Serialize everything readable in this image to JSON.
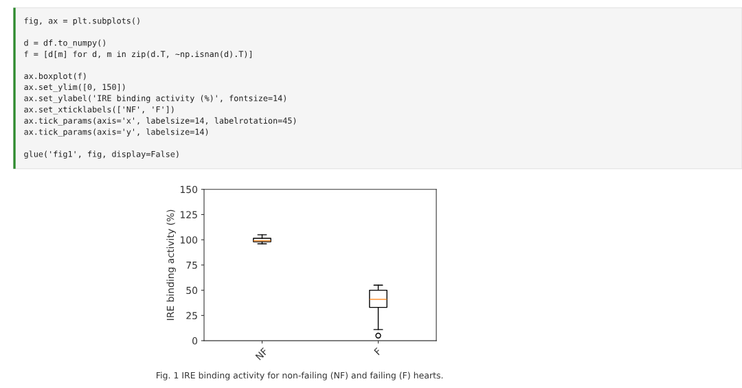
{
  "chart_data": {
    "type": "box",
    "ylabel": "IRE binding activity (%)",
    "categories": [
      "NF",
      "F"
    ],
    "boxes": [
      {
        "low": 96,
        "q1": 98,
        "median": 99,
        "q3": 101.5,
        "high": 105
      },
      {
        "low": 11,
        "q1": 33,
        "median": 41,
        "q3": 50,
        "high": 55,
        "outliers": [
          5
        ]
      }
    ],
    "ylim": [
      0,
      150
    ],
    "yticks": [
      0,
      25,
      50,
      75,
      100,
      125,
      150
    ],
    "grid": false,
    "annotations": [
      "fig, ax = plt.subplots()\n\nd = df.to_numpy()\nf = [d[m] for d, m in zip(d.T, ~np.isnan(d).T)]\n\nax.boxplot(f)\nax.set_ylim([0, 150])\nax.set_ylabel('IRE binding activity (%)', fontsize=14)\nax.set_xticklabels(['NF', 'F'])\nax.tick_params(axis='x', labelsize=14, labelrotation=45)\nax.tick_params(axis='y', labelsize=14)\n\nglue('fig1', fig, display=False)",
      "Fig. 1 IRE binding activity for non-failing (NF) and failing (F) hearts."
    ]
  }
}
